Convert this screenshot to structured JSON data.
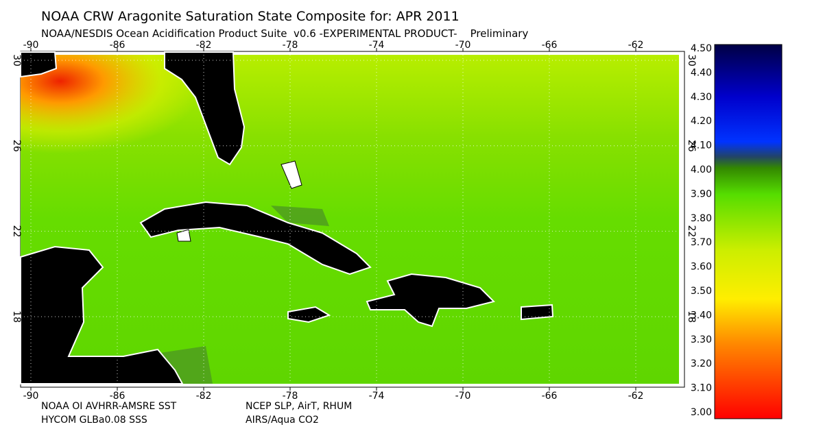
{
  "header": {
    "title": "NOAA CRW Aragonite Saturation State Composite for: APR 2011",
    "subtitle": "NOAA/NESDIS Ocean Acidification Product Suite  v0.6 -EXPERIMENTAL PRODUCT-    Preliminary"
  },
  "map": {
    "lon_labels": [
      "-90",
      "-86",
      "-82",
      "-78",
      "-74",
      "-70",
      "-66",
      "-62"
    ],
    "lat_labels": [
      "30",
      "26",
      "22",
      "18"
    ]
  },
  "footer": {
    "sources_left": [
      "NOAA OI AVHRR-AMSRE SST",
      "HYCOM GLBa0.08 SSS"
    ],
    "sources_right": [
      "NCEP SLP, AirT, RHUM",
      "AIRS/Aqua CO2"
    ]
  },
  "colorbar": {
    "labels": [
      "4.50",
      "4.40",
      "4.30",
      "4.20",
      "4.10",
      "4.00",
      "3.90",
      "3.80",
      "3.70",
      "3.60",
      "3.50",
      "3.40",
      "3.30",
      "3.20",
      "3.10",
      "3.00"
    ]
  }
}
